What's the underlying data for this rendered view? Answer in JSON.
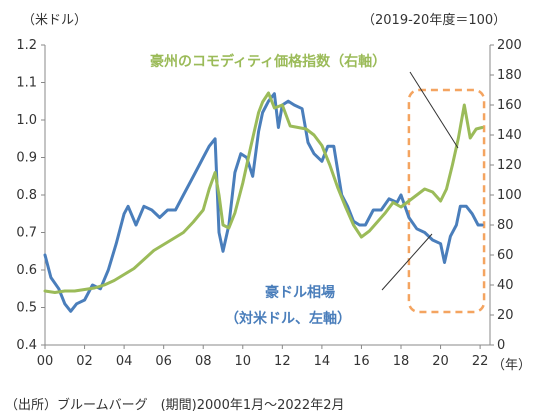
{
  "chart_data": {
    "type": "line",
    "left_unit_label": "（米ドル）",
    "right_unit_label": "（2019-20年度＝100）",
    "x_unit_label": "（年）",
    "source_note": "（出所）ブルームバーグ　(期間)2000年1月～2022年2月",
    "xlim": [
      2000,
      2022.5
    ],
    "x_ticks": [
      0,
      2,
      4,
      6,
      8,
      10,
      12,
      14,
      16,
      18,
      20,
      22
    ],
    "x_tick_labels": [
      "00",
      "02",
      "04",
      "06",
      "08",
      "10",
      "12",
      "14",
      "16",
      "18",
      "20",
      "22"
    ],
    "ylim_left": [
      0.4,
      1.2
    ],
    "left_ticks": [
      "0.4",
      "0.5",
      "0.6",
      "0.7",
      "0.8",
      "0.9",
      "1.0",
      "1.1",
      "1.2"
    ],
    "ylim_right": [
      0,
      200
    ],
    "right_ticks": [
      "0",
      "20",
      "40",
      "60",
      "80",
      "100",
      "120",
      "140",
      "160",
      "180",
      "200"
    ],
    "grid": false,
    "highlight_box": {
      "x_range": [
        2018.4,
        2022.2
      ],
      "y_range_right": [
        22,
        170
      ],
      "color": "#f4a460"
    },
    "series": [
      {
        "name": "豪ドル相場",
        "annotation_line2": "（対米ドル、左軸）",
        "axis": "left",
        "color": "#4a7ebb",
        "x": [
          2000.0,
          2000.3,
          2000.7,
          2001.0,
          2001.3,
          2001.6,
          2002.0,
          2002.4,
          2002.8,
          2003.2,
          2003.6,
          2004.0,
          2004.2,
          2004.6,
          2005.0,
          2005.4,
          2005.8,
          2006.2,
          2006.6,
          2007.0,
          2007.4,
          2007.8,
          2008.0,
          2008.3,
          2008.6,
          2008.8,
          2009.0,
          2009.3,
          2009.6,
          2009.9,
          2010.2,
          2010.5,
          2010.8,
          2011.0,
          2011.3,
          2011.6,
          2011.8,
          2012.0,
          2012.3,
          2012.6,
          2013.0,
          2013.3,
          2013.6,
          2014.0,
          2014.3,
          2014.6,
          2015.0,
          2015.3,
          2015.6,
          2015.9,
          2016.2,
          2016.6,
          2017.0,
          2017.4,
          2017.8,
          2018.0,
          2018.4,
          2018.8,
          2019.2,
          2019.6,
          2020.0,
          2020.2,
          2020.5,
          2020.8,
          2021.0,
          2021.3,
          2021.6,
          2021.9,
          2022.1
        ],
        "values": [
          0.64,
          0.58,
          0.55,
          0.51,
          0.49,
          0.51,
          0.52,
          0.56,
          0.55,
          0.6,
          0.67,
          0.75,
          0.77,
          0.72,
          0.77,
          0.76,
          0.74,
          0.76,
          0.76,
          0.8,
          0.84,
          0.88,
          0.9,
          0.93,
          0.95,
          0.7,
          0.65,
          0.72,
          0.86,
          0.91,
          0.9,
          0.85,
          0.97,
          1.02,
          1.05,
          1.07,
          0.98,
          1.04,
          1.05,
          1.04,
          1.03,
          0.94,
          0.91,
          0.89,
          0.93,
          0.93,
          0.8,
          0.77,
          0.73,
          0.72,
          0.72,
          0.76,
          0.76,
          0.79,
          0.78,
          0.8,
          0.74,
          0.71,
          0.7,
          0.68,
          0.67,
          0.62,
          0.69,
          0.72,
          0.77,
          0.77,
          0.75,
          0.72,
          0.72
        ]
      },
      {
        "name": "豪州のコモディティ価格指数",
        "axis_note": "（右軸）",
        "axis": "right",
        "color": "#9bbb59",
        "x": [
          2000.0,
          2000.5,
          2001.0,
          2001.5,
          2002.0,
          2002.5,
          2003.0,
          2003.5,
          2004.0,
          2004.5,
          2005.0,
          2005.5,
          2006.0,
          2006.5,
          2007.0,
          2007.5,
          2008.0,
          2008.3,
          2008.6,
          2008.8,
          2009.0,
          2009.3,
          2009.6,
          2010.0,
          2010.4,
          2010.8,
          2011.0,
          2011.3,
          2011.6,
          2012.0,
          2012.4,
          2012.8,
          2013.2,
          2013.6,
          2014.0,
          2014.4,
          2014.8,
          2015.2,
          2015.6,
          2016.0,
          2016.4,
          2016.8,
          2017.2,
          2017.6,
          2018.0,
          2018.4,
          2018.8,
          2019.2,
          2019.6,
          2020.0,
          2020.3,
          2020.6,
          2020.9,
          2021.2,
          2021.5,
          2021.8,
          2022.1
        ],
        "values": [
          36,
          35,
          36,
          36,
          37,
          38,
          40,
          43,
          47,
          51,
          57,
          63,
          67,
          71,
          75,
          82,
          90,
          104,
          115,
          100,
          80,
          78,
          88,
          108,
          132,
          155,
          162,
          168,
          158,
          160,
          146,
          145,
          144,
          140,
          133,
          120,
          105,
          92,
          80,
          72,
          76,
          82,
          88,
          95,
          92,
          96,
          100,
          104,
          102,
          96,
          104,
          120,
          138,
          160,
          138,
          144,
          145
        ]
      }
    ]
  }
}
